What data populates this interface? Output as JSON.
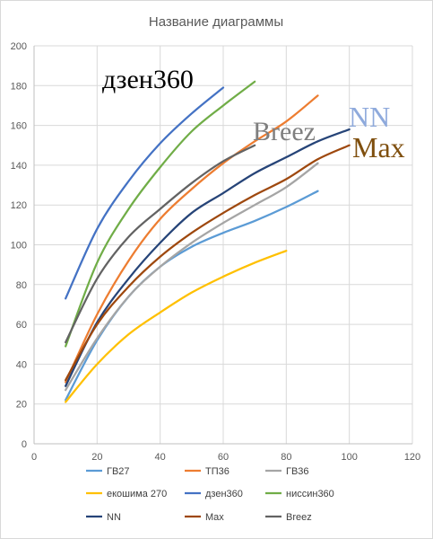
{
  "chart_data": {
    "type": "line",
    "title": "Название диаграммы",
    "xlim": [
      0,
      120
    ],
    "ylim": [
      0,
      200
    ],
    "x_ticks": [
      0,
      20,
      40,
      60,
      80,
      100,
      120
    ],
    "y_ticks": [
      0,
      20,
      40,
      60,
      80,
      100,
      120,
      140,
      160,
      180,
      200
    ],
    "grid": "horizontal",
    "legend_position": "bottom",
    "series": [
      {
        "name": "ГВ27",
        "color": "#5b9bd5",
        "points": [
          [
            10,
            22
          ],
          [
            20,
            52
          ],
          [
            30,
            74
          ],
          [
            40,
            89
          ],
          [
            50,
            99
          ],
          [
            60,
            106
          ],
          [
            70,
            112
          ],
          [
            80,
            119
          ],
          [
            90,
            127
          ]
        ]
      },
      {
        "name": "ТП36",
        "color": "#ed7d31",
        "points": [
          [
            10,
            31
          ],
          [
            20,
            65
          ],
          [
            30,
            92
          ],
          [
            40,
            113
          ],
          [
            50,
            128
          ],
          [
            60,
            141
          ],
          [
            70,
            152
          ],
          [
            80,
            162
          ],
          [
            90,
            175
          ]
        ]
      },
      {
        "name": "ГВ36",
        "color": "#a5a5a5",
        "points": [
          [
            10,
            27
          ],
          [
            20,
            53
          ],
          [
            30,
            74
          ],
          [
            40,
            89
          ],
          [
            50,
            101
          ],
          [
            60,
            111
          ],
          [
            70,
            120
          ],
          [
            80,
            129
          ],
          [
            90,
            141
          ]
        ]
      },
      {
        "name": "екошима 270",
        "color": "#ffc000",
        "points": [
          [
            10,
            21
          ],
          [
            20,
            40
          ],
          [
            30,
            55
          ],
          [
            40,
            66
          ],
          [
            50,
            76
          ],
          [
            60,
            84
          ],
          [
            70,
            91
          ],
          [
            80,
            97
          ]
        ]
      },
      {
        "name": "дзен360",
        "color": "#4472c4",
        "points": [
          [
            10,
            73
          ],
          [
            20,
            108
          ],
          [
            30,
            132
          ],
          [
            40,
            151
          ],
          [
            50,
            166
          ],
          [
            60,
            179
          ]
        ]
      },
      {
        "name": "ниссин360",
        "color": "#70ad47",
        "points": [
          [
            10,
            49
          ],
          [
            20,
            91
          ],
          [
            30,
            118
          ],
          [
            40,
            139
          ],
          [
            50,
            157
          ],
          [
            60,
            170
          ],
          [
            70,
            182
          ]
        ]
      },
      {
        "name": "NN",
        "color": "#264478",
        "points": [
          [
            10,
            29
          ],
          [
            20,
            61
          ],
          [
            30,
            83
          ],
          [
            40,
            101
          ],
          [
            50,
            116
          ],
          [
            60,
            126
          ],
          [
            70,
            136
          ],
          [
            80,
            144
          ],
          [
            90,
            152
          ],
          [
            100,
            158
          ]
        ]
      },
      {
        "name": "Max",
        "color": "#9e480e",
        "points": [
          [
            10,
            32
          ],
          [
            20,
            60
          ],
          [
            30,
            79
          ],
          [
            40,
            94
          ],
          [
            50,
            106
          ],
          [
            60,
            116
          ],
          [
            70,
            125
          ],
          [
            80,
            133
          ],
          [
            90,
            143
          ],
          [
            100,
            150
          ]
        ]
      },
      {
        "name": "Breez",
        "color": "#636363",
        "points": [
          [
            10,
            51
          ],
          [
            20,
            83
          ],
          [
            30,
            104
          ],
          [
            40,
            118
          ],
          [
            50,
            131
          ],
          [
            60,
            142
          ],
          [
            70,
            150
          ]
        ]
      }
    ],
    "annotations": [
      {
        "text": "дзен360",
        "color": "#000000"
      },
      {
        "text": "Breez",
        "color": "#7f7f7f"
      },
      {
        "text": "NN",
        "color": "#8faadc"
      },
      {
        "text": "Max",
        "color": "#7f4f0e"
      }
    ]
  }
}
